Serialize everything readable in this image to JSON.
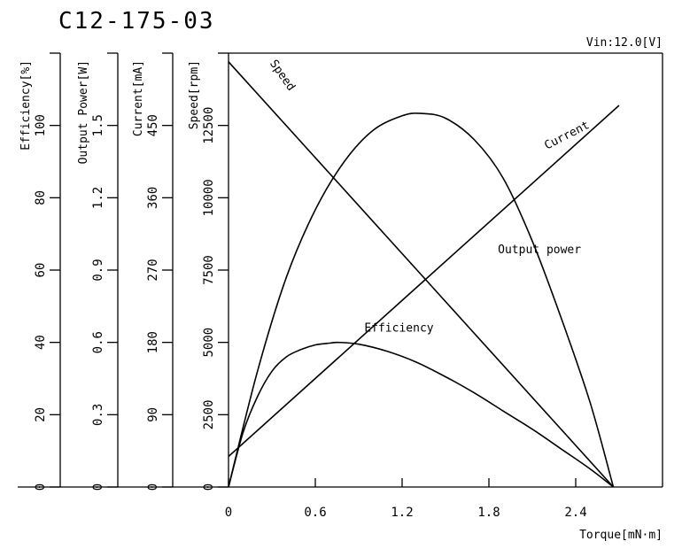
{
  "model_title": "C12-175-03",
  "vin_label": "Vin:12.0[V]",
  "chart_data": {
    "type": "line",
    "title": "C12-175-03",
    "xlabel": "Torque[mN·m]",
    "xlim": [
      0,
      3.0
    ],
    "x_ticks": [
      "0",
      "0.6",
      "1.2",
      "1.8",
      "2.4"
    ],
    "x_tick_values": [
      0,
      0.6,
      1.2,
      1.8,
      2.4
    ],
    "grid": false,
    "axes": {
      "efficiency": {
        "label": "Efficiency[%]",
        "range": [
          0,
          120
        ],
        "ticks": [
          "0",
          "20",
          "40",
          "60",
          "80",
          "100"
        ],
        "tick_values": [
          0,
          20,
          40,
          60,
          80,
          100
        ]
      },
      "output_power": {
        "label": "Output Power[W]",
        "range": [
          0,
          1.8
        ],
        "ticks": [
          "0",
          "0.3",
          "0.6",
          "0.9",
          "1.2",
          "1.5"
        ],
        "tick_values": [
          0,
          0.3,
          0.6,
          0.9,
          1.2,
          1.5
        ]
      },
      "current": {
        "label": "Current[mA]",
        "range": [
          0,
          540
        ],
        "ticks": [
          "0",
          "90",
          "180",
          "270",
          "360",
          "450"
        ],
        "tick_values": [
          0,
          90,
          180,
          270,
          360,
          450
        ]
      },
      "speed": {
        "label": "Speed[rpm]",
        "range": [
          0,
          15000
        ],
        "ticks": [
          "0",
          "2500",
          "5000",
          "7500",
          "10000",
          "12500"
        ],
        "tick_values": [
          0,
          2500,
          5000,
          7500,
          10000,
          12500
        ]
      }
    },
    "series": [
      {
        "name": "Speed",
        "axis": "speed",
        "color": "#000000",
        "x": [
          0,
          2.66
        ],
        "y": [
          14700,
          0
        ]
      },
      {
        "name": "Current",
        "axis": "current",
        "color": "#000000",
        "x": [
          0,
          2.7
        ],
        "y": [
          38,
          475
        ]
      },
      {
        "name": "Output power",
        "axis": "output_power",
        "color": "#000000",
        "x": [
          0,
          0.2,
          0.4,
          0.6,
          0.8,
          1.0,
          1.2,
          1.33,
          1.5,
          1.7,
          1.9,
          2.1,
          2.3,
          2.5,
          2.66
        ],
        "y": [
          0,
          0.48,
          0.87,
          1.15,
          1.35,
          1.48,
          1.54,
          1.55,
          1.53,
          1.44,
          1.28,
          1.02,
          0.7,
          0.35,
          0
        ]
      },
      {
        "name": "Efficiency",
        "axis": "efficiency",
        "color": "#000000",
        "x": [
          0,
          0.1,
          0.2,
          0.3,
          0.4,
          0.5,
          0.6,
          0.7,
          0.76,
          0.9,
          1.1,
          1.3,
          1.5,
          1.7,
          1.9,
          2.1,
          2.3,
          2.5,
          2.66
        ],
        "y": [
          0,
          15,
          25,
          32,
          36,
          38,
          39.3,
          39.8,
          40,
          39.5,
          37.5,
          34.5,
          30.5,
          26,
          21,
          16,
          10.5,
          5,
          0
        ]
      }
    ]
  }
}
